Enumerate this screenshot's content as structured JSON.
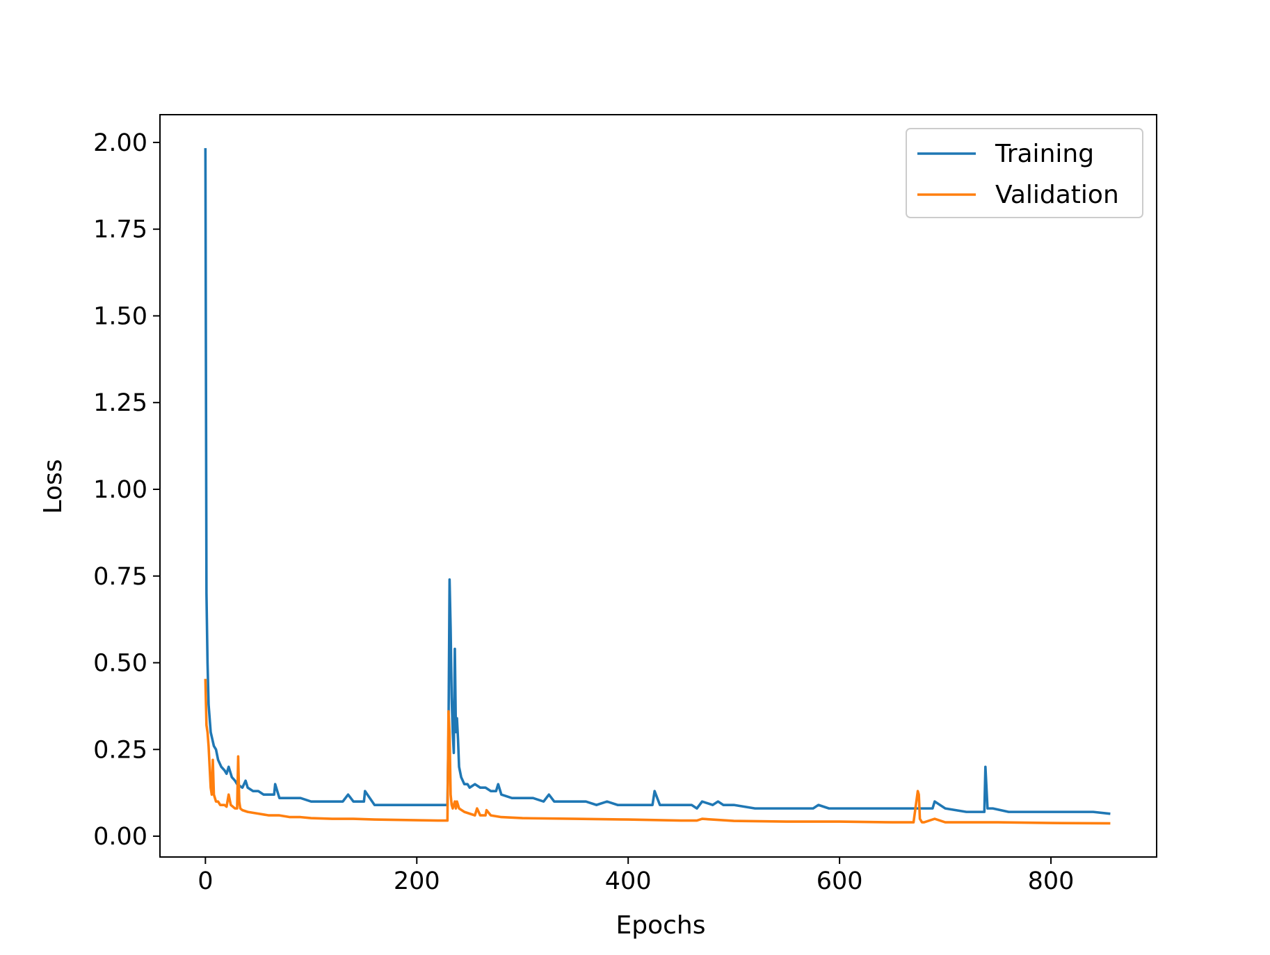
{
  "chart_data": {
    "type": "line",
    "title": "",
    "xlabel": "Epochs",
    "ylabel": "Loss",
    "xlim": [
      -43,
      900
    ],
    "ylim": [
      -0.06,
      2.08
    ],
    "xticks": [
      0,
      200,
      400,
      600,
      800
    ],
    "yticks": [
      0.0,
      0.25,
      0.5,
      0.75,
      1.0,
      1.25,
      1.5,
      1.75,
      2.0
    ],
    "xtick_labels": [
      "0",
      "200",
      "400",
      "600",
      "800"
    ],
    "ytick_labels": [
      "0.00",
      "0.25",
      "0.50",
      "0.75",
      "1.00",
      "1.25",
      "1.50",
      "1.75",
      "2.00"
    ],
    "grid": false,
    "legend_position": "top-right",
    "series": [
      {
        "name": "Training",
        "color": "#1f77b4",
        "x": [
          0,
          1,
          2,
          3,
          5,
          8,
          10,
          12,
          15,
          18,
          20,
          22,
          25,
          28,
          30,
          35,
          38,
          40,
          45,
          50,
          55,
          60,
          65,
          66,
          70,
          80,
          90,
          100,
          110,
          120,
          130,
          135,
          140,
          150,
          151,
          160,
          170,
          180,
          190,
          200,
          210,
          220,
          228,
          229,
          230,
          231,
          232,
          233,
          234,
          235,
          236,
          237,
          238,
          239,
          240,
          242,
          245,
          248,
          250,
          255,
          260,
          265,
          270,
          275,
          277,
          280,
          290,
          300,
          310,
          320,
          325,
          330,
          340,
          350,
          360,
          370,
          380,
          390,
          400,
          410,
          420,
          423,
          425,
          430,
          440,
          450,
          460,
          465,
          470,
          480,
          485,
          490,
          500,
          520,
          540,
          560,
          575,
          580,
          590,
          600,
          620,
          640,
          660,
          670,
          680,
          688,
          690,
          695,
          700,
          720,
          735,
          737,
          738,
          740,
          745,
          760,
          780,
          800,
          820,
          840,
          855
        ],
        "y": [
          1.98,
          0.7,
          0.5,
          0.38,
          0.3,
          0.26,
          0.25,
          0.22,
          0.2,
          0.19,
          0.18,
          0.2,
          0.17,
          0.16,
          0.15,
          0.14,
          0.16,
          0.14,
          0.13,
          0.13,
          0.12,
          0.12,
          0.12,
          0.15,
          0.11,
          0.11,
          0.11,
          0.1,
          0.1,
          0.1,
          0.1,
          0.12,
          0.1,
          0.1,
          0.13,
          0.09,
          0.09,
          0.09,
          0.09,
          0.09,
          0.09,
          0.09,
          0.09,
          0.09,
          0.3,
          0.74,
          0.6,
          0.4,
          0.3,
          0.24,
          0.54,
          0.3,
          0.34,
          0.28,
          0.2,
          0.17,
          0.15,
          0.15,
          0.14,
          0.15,
          0.14,
          0.14,
          0.13,
          0.13,
          0.15,
          0.12,
          0.11,
          0.11,
          0.11,
          0.1,
          0.12,
          0.1,
          0.1,
          0.1,
          0.1,
          0.09,
          0.1,
          0.09,
          0.09,
          0.09,
          0.09,
          0.09,
          0.13,
          0.09,
          0.09,
          0.09,
          0.09,
          0.08,
          0.1,
          0.09,
          0.1,
          0.09,
          0.09,
          0.08,
          0.08,
          0.08,
          0.08,
          0.09,
          0.08,
          0.08,
          0.08,
          0.08,
          0.08,
          0.08,
          0.08,
          0.08,
          0.1,
          0.09,
          0.08,
          0.07,
          0.07,
          0.07,
          0.2,
          0.08,
          0.08,
          0.07,
          0.07,
          0.07,
          0.07,
          0.07,
          0.065
        ]
      },
      {
        "name": "Validation",
        "color": "#ff7f0e",
        "x": [
          0,
          1,
          2,
          3,
          4,
          5,
          6,
          7,
          8,
          9,
          10,
          12,
          14,
          16,
          18,
          20,
          22,
          24,
          26,
          28,
          30,
          31,
          32,
          33,
          35,
          40,
          50,
          60,
          70,
          80,
          90,
          100,
          120,
          140,
          160,
          180,
          200,
          220,
          228,
          229,
          230,
          231,
          232,
          233,
          234,
          235,
          236,
          237,
          238,
          240,
          245,
          250,
          255,
          257,
          260,
          265,
          266,
          270,
          280,
          300,
          350,
          400,
          450,
          465,
          470,
          500,
          550,
          600,
          650,
          670,
          674,
          675,
          676,
          678,
          680,
          690,
          700,
          750,
          800,
          855
        ],
        "y": [
          0.45,
          0.32,
          0.3,
          0.26,
          0.2,
          0.14,
          0.12,
          0.22,
          0.12,
          0.11,
          0.1,
          0.1,
          0.09,
          0.09,
          0.09,
          0.085,
          0.12,
          0.09,
          0.085,
          0.08,
          0.08,
          0.23,
          0.1,
          0.08,
          0.075,
          0.07,
          0.065,
          0.06,
          0.06,
          0.055,
          0.055,
          0.052,
          0.05,
          0.05,
          0.048,
          0.047,
          0.046,
          0.045,
          0.045,
          0.045,
          0.36,
          0.3,
          0.12,
          0.09,
          0.08,
          0.09,
          0.1,
          0.08,
          0.1,
          0.08,
          0.07,
          0.065,
          0.06,
          0.08,
          0.06,
          0.06,
          0.075,
          0.06,
          0.055,
          0.052,
          0.05,
          0.048,
          0.045,
          0.045,
          0.05,
          0.044,
          0.042,
          0.042,
          0.04,
          0.04,
          0.13,
          0.12,
          0.05,
          0.04,
          0.04,
          0.05,
          0.04,
          0.04,
          0.038,
          0.037
        ]
      }
    ]
  }
}
